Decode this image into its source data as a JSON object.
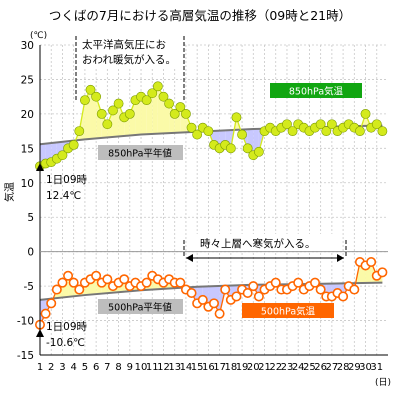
{
  "chart_data": {
    "type": "line",
    "title": "つくばの7月における高層気温の推移（09時と21時）",
    "ylabel": "気温",
    "y_unit": "(℃)",
    "x_unit": "(日)",
    "ylim": [
      -15,
      30
    ],
    "yticks": [
      -15,
      -10,
      -5,
      0,
      5,
      10,
      15,
      20,
      25,
      30
    ],
    "xlim": [
      1,
      32
    ],
    "xticks": [
      "1",
      "2",
      "3",
      "4",
      "5",
      "6",
      "7",
      "8",
      "9",
      "10",
      "11",
      "12",
      "13",
      "14",
      "15",
      "16",
      "17",
      "18",
      "19",
      "20",
      "21",
      "22",
      "23",
      "24",
      "25",
      "26",
      "27",
      "28",
      "29",
      "30",
      "31"
    ],
    "grid": true,
    "series": [
      {
        "name": "850hPa気温",
        "color": "#d4ea1c",
        "x": [
          1,
          1.5,
          2,
          2.5,
          3,
          3.5,
          4,
          4.5,
          5,
          5.5,
          6,
          6.5,
          7,
          7.5,
          8,
          8.5,
          9,
          9.5,
          10,
          10.5,
          11,
          11.5,
          12,
          12.5,
          13,
          13.5,
          14,
          14.5,
          15,
          15.5,
          16,
          16.5,
          17,
          17.5,
          18,
          18.5,
          19,
          19.5,
          20,
          20.5,
          21,
          21.5,
          22,
          22.5,
          23,
          23.5,
          24,
          24.5,
          25,
          25.5,
          26,
          26.5,
          27,
          27.5,
          28,
          28.5,
          29,
          29.5,
          30,
          30.5,
          31,
          31.5
        ],
        "values": [
          12.4,
          12.8,
          13.0,
          13.5,
          14.0,
          15.0,
          15.5,
          17.5,
          22.0,
          23.5,
          22.5,
          20.0,
          18.5,
          20.5,
          21.5,
          19.5,
          20.0,
          22.0,
          22.5,
          22.0,
          23.0,
          24.0,
          22.5,
          21.5,
          20.0,
          21.0,
          20.0,
          18.0,
          17.0,
          18.0,
          17.5,
          15.5,
          15.0,
          15.5,
          15.0,
          19.5,
          17.0,
          15.0,
          14.0,
          14.5,
          17.5,
          18.0,
          17.5,
          18.0,
          18.5,
          17.5,
          18.5,
          18.0,
          17.5,
          18.0,
          18.5,
          17.5,
          18.5,
          17.5,
          18.0,
          18.5,
          18.0,
          17.5,
          20.0,
          18.0,
          18.5,
          17.5
        ]
      },
      {
        "name": "850hPa平年値",
        "color": "#777777",
        "x": [
          1,
          5,
          10,
          15,
          20,
          25,
          28,
          31.5
        ],
        "values": [
          15.6,
          16.3,
          17.0,
          17.4,
          17.8,
          18.0,
          18.2,
          18.3
        ]
      },
      {
        "name": "500hPa気温",
        "color": "#ff6600",
        "x": [
          1,
          1.5,
          2,
          2.5,
          3,
          3.5,
          4,
          4.5,
          5,
          5.5,
          6,
          6.5,
          7,
          7.5,
          8,
          8.5,
          9,
          9.5,
          10,
          10.5,
          11,
          11.5,
          12,
          12.5,
          13,
          13.5,
          14,
          14.5,
          15,
          15.5,
          16,
          16.5,
          17,
          17.5,
          18,
          18.5,
          19,
          19.5,
          20,
          20.5,
          21,
          21.5,
          22,
          22.5,
          23,
          23.5,
          24,
          24.5,
          25,
          25.5,
          26,
          26.5,
          27,
          27.5,
          28,
          28.5,
          29,
          29.5,
          30,
          30.5,
          31,
          31.5
        ],
        "values": [
          -10.6,
          -9.0,
          -7.5,
          -5.5,
          -4.5,
          -3.5,
          -4.5,
          -5.5,
          -4.5,
          -4.0,
          -3.5,
          -4.5,
          -4.0,
          -5.0,
          -4.5,
          -4.0,
          -5.0,
          -4.5,
          -5.0,
          -4.5,
          -3.5,
          -4.0,
          -4.5,
          -4.0,
          -4.5,
          -4.5,
          -5.5,
          -6.0,
          -7.5,
          -7.0,
          -8.0,
          -7.5,
          -9.0,
          -5.5,
          -7.0,
          -6.5,
          -5.5,
          -6.0,
          -5.0,
          -6.5,
          -5.5,
          -5.0,
          -4.5,
          -5.5,
          -5.5,
          -5.0,
          -4.5,
          -5.5,
          -5.0,
          -4.5,
          -5.5,
          -6.5,
          -6.5,
          -6.0,
          -6.5,
          -5.0,
          -5.5,
          -1.5,
          -2.0,
          -1.5,
          -3.5,
          -3.0
        ]
      },
      {
        "name": "500hPa平年値",
        "color": "#777777",
        "x": [
          1,
          5,
          10,
          15,
          20,
          25,
          28,
          31.5
        ],
        "values": [
          -7.0,
          -6.3,
          -5.6,
          -5.1,
          -4.8,
          -4.7,
          -4.6,
          -4.5
        ]
      }
    ],
    "annotations": {
      "anticyclone": {
        "text_lines": [
          "太平洋高気圧にお",
          "おわれ暖気が入る。"
        ],
        "x_range": [
          4.5,
          13.9
        ]
      },
      "cold_air": {
        "text": "時々上層へ寒気が入る。",
        "x_range": [
          13.9,
          28.3
        ]
      },
      "start_850": {
        "text_lines": [
          "1日09時",
          "12.4℃"
        ]
      },
      "start_500": {
        "text_lines": [
          "1日09時",
          "-10.6℃"
        ]
      }
    },
    "legend_labels": {
      "t850": "850hPa気温",
      "n850": "850hPa平年値",
      "t500": "500hPa気温",
      "n500": "500hPa平年値"
    },
    "fill_colors": {
      "warm": "#fbfaa8",
      "cold": "#c8c8ff"
    }
  }
}
